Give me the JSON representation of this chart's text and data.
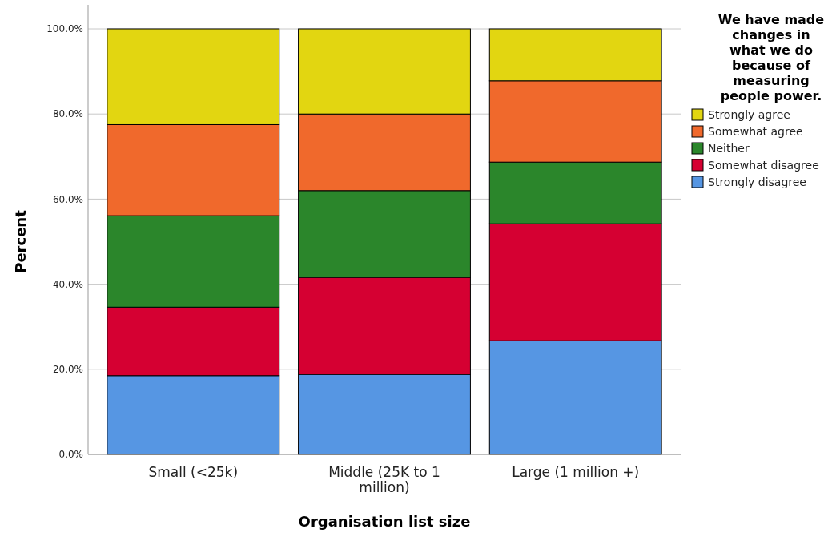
{
  "chart_data": {
    "type": "bar",
    "stacked": true,
    "xlabel": "Organisation list size",
    "ylabel": "Percent",
    "legend_title": "We have made changes in what we do because of measuring people power.",
    "categories": [
      "Small (<25k)",
      "Middle (25K to 1 million)",
      "Large (1 million +)"
    ],
    "series": [
      {
        "name": "Strongly disagree",
        "color": "#5696e3",
        "values": [
          18.5,
          18.8,
          26.7
        ]
      },
      {
        "name": "Somewhat disagree",
        "color": "#d50032",
        "values": [
          16.1,
          22.8,
          27.5
        ]
      },
      {
        "name": "Neither",
        "color": "#2b862b",
        "values": [
          21.5,
          20.4,
          14.5
        ]
      },
      {
        "name": "Somewhat agree",
        "color": "#f0692c",
        "values": [
          21.4,
          18.0,
          19.1
        ]
      },
      {
        "name": "Strongly agree",
        "color": "#e2d611",
        "values": [
          22.5,
          20.0,
          12.2
        ]
      }
    ],
    "ylim": [
      0,
      100
    ],
    "yticks": [
      {
        "value": 0,
        "label": "0.0%"
      },
      {
        "value": 20,
        "label": "20.0%"
      },
      {
        "value": 40,
        "label": "40.0%"
      },
      {
        "value": 60,
        "label": "60.0%"
      },
      {
        "value": 80,
        "label": "80.0%"
      },
      {
        "value": 100,
        "label": "100.0%"
      }
    ],
    "grid": "y",
    "legend": "right"
  }
}
